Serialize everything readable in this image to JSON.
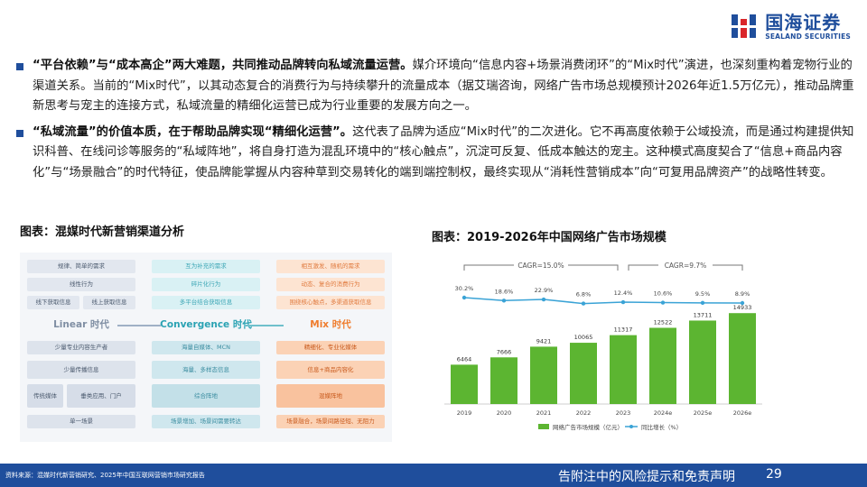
{
  "logo": {
    "name_cn": "国海证券",
    "name_en": "SEALAND SECURITIES"
  },
  "bullets": [
    {
      "bold": "“平台依赖”与“成本高企”两大难题，共同推动品牌转向私域流量运营。",
      "text": "媒介环境向“信息内容+场景消费闭环”的“Mix时代”演进，也深刻重构着宠物行业的渠道关系。当前的“Mix时代”，以其动态复合的消费行为与持续攀升的流量成本（据艾瑞咨询，网络广告市场总规模预计2026年近1.5万亿元），推动品牌重新思考与宠主的连接方式，私域流量的精细化运营已成为行业重要的发展方向之一。"
    },
    {
      "bold": "“私域流量”的价值本质，在于帮助品牌实现“精细化运营”。",
      "text": "这代表了品牌为适应“Mix时代”的二次进化。它不再高度依赖于公域投流，而是通过构建提供知识科普、在线问诊等服务的“私域阵地”，将自身打造为混乱环境中的“核心触点”，沉淀可反复、低成本触达的宠主。这种模式高度契合了“信息+商品内容化”与“场景融合”的时代特征，使品牌能掌握从内容种草到交易转化的端到端控制权，最终实现从“消耗性营销成本”向“可复用品牌资产”的战略性转变。"
    }
  ],
  "figure_left": {
    "title": "图表：混媒时代新营销渠道分析",
    "linear": {
      "heading": "Linear 时代",
      "top_items": [
        "规律、简单的需求",
        "线性行为",
        "线下获取信息",
        "线上获取信息"
      ],
      "bottom_items": [
        "少量专业内容生产者",
        "少量传播信息",
        "传统媒体",
        "垂类应用、门户",
        "单一场景"
      ]
    },
    "convergence": {
      "heading": "Convergence 时代",
      "top_items": [
        "互为补充的需求",
        "碎片化行为",
        "多平台结合获取信息"
      ],
      "bottom_items": [
        "海量自媒体、MCN",
        "海量、多样态信息",
        "综合阵地",
        "场景增加、场景间需要转达"
      ]
    },
    "mix": {
      "heading": "Mix 时代",
      "top_items": [
        "相互激发、随机的需求",
        "动态、复合的消费行为",
        "围绕核心触点，多渠道获取信息"
      ],
      "bottom_items": [
        "精细化、专业化媒体",
        "信息+商品内容化",
        "混媒阵地",
        "场景融合，场景间路径短、无阻力"
      ]
    }
  },
  "chart_data": {
    "type": "bar",
    "title": "图表：2019-2026年中国网络广告市场规模",
    "categories": [
      "2019",
      "2020",
      "2021",
      "2022",
      "2023",
      "2024e",
      "2025e",
      "2026e"
    ],
    "series": [
      {
        "name": "网络广告市场规模（亿元）",
        "type": "bar",
        "values": [
          6464,
          7666,
          9421,
          10065,
          11317,
          12522,
          13711,
          14933
        ],
        "color": "#5cb531"
      },
      {
        "name": "同比增长（%）",
        "type": "line",
        "values": [
          30.2,
          18.6,
          22.9,
          6.8,
          12.4,
          10.6,
          9.5,
          8.9
        ],
        "labels": [
          "30.2%",
          "18.6%",
          "22.9%",
          "6.8%",
          "12.4%",
          "10.6%",
          "9.5%",
          "8.9%"
        ],
        "color": "#3aa3d6"
      }
    ],
    "annotations": [
      "CAGR=15.0%",
      "CAGR=9.7%"
    ],
    "legend_position": "bottom"
  },
  "footer": {
    "source": "资料来源：混媒时代新营销研究、2025年中国互联网营销市场研究报告",
    "disclaimer": "告附注中的风险提示和免责声明",
    "page": "29"
  }
}
